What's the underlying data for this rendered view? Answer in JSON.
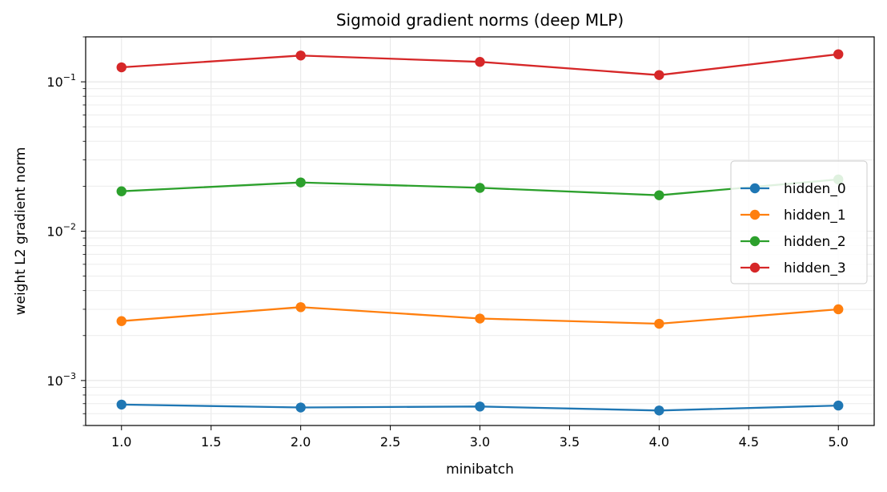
{
  "chart_data": {
    "type": "line",
    "title": "Sigmoid gradient norms (deep MLP)",
    "xlabel": "minibatch",
    "ylabel": "weight L2 gradient norm",
    "x": [
      1.0,
      2.0,
      3.0,
      4.0,
      5.0
    ],
    "xlim": [
      0.8,
      5.2
    ],
    "ylim": [
      0.0005,
      0.2
    ],
    "yscale": "log",
    "grid": true,
    "legend_position": "center-right",
    "xticks": [
      "1.0",
      "1.5",
      "2.0",
      "2.5",
      "3.0",
      "3.5",
      "4.0",
      "4.5",
      "5.0"
    ],
    "yticks": [
      {
        "value": 0.001,
        "base": "10",
        "exp": "−3"
      },
      {
        "value": 0.01,
        "base": "10",
        "exp": "−2"
      },
      {
        "value": 0.1,
        "base": "10",
        "exp": "−1"
      }
    ],
    "series": [
      {
        "name": "hidden_0",
        "color": "#1f77b4",
        "values": [
          0.00069,
          0.00066,
          0.00067,
          0.00063,
          0.00068
        ]
      },
      {
        "name": "hidden_1",
        "color": "#ff7f0e",
        "values": [
          0.0025,
          0.0031,
          0.0026,
          0.0024,
          0.003
        ]
      },
      {
        "name": "hidden_2",
        "color": "#2ca02c",
        "values": [
          0.0185,
          0.0212,
          0.0195,
          0.0174,
          0.0222
        ]
      },
      {
        "name": "hidden_3",
        "color": "#d62728",
        "values": [
          0.125,
          0.15,
          0.136,
          0.111,
          0.153
        ]
      }
    ]
  }
}
